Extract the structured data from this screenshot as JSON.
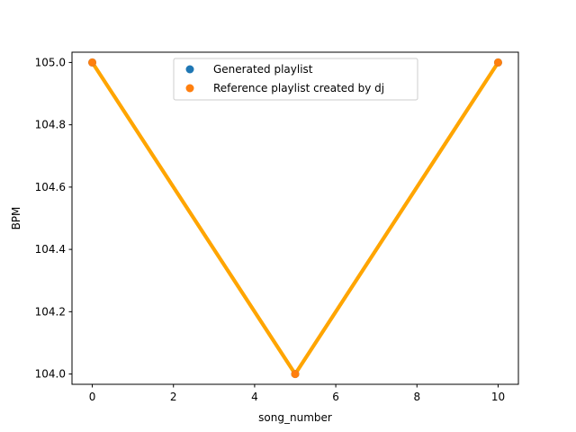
{
  "chart_data": {
    "type": "line",
    "xlabel": "song_number",
    "ylabel": "BPM",
    "xlim": [
      -0.5,
      10.5
    ],
    "ylim": [
      103.967,
      105.033
    ],
    "xticks": [
      0,
      2,
      4,
      6,
      8,
      10
    ],
    "xtick_labels": [
      "0",
      "2",
      "4",
      "6",
      "8",
      "10"
    ],
    "yticks": [
      104.0,
      104.2,
      104.4,
      104.6,
      104.8,
      105.0
    ],
    "ytick_labels": [
      "104.0",
      "104.2",
      "104.4",
      "104.6",
      "104.8",
      "105.0"
    ],
    "grid": false,
    "legend_position": "top-center",
    "series": [
      {
        "name": "Generated playlist",
        "marker_color": "#1f77b4",
        "line_color": "#ffa500",
        "x": [
          0,
          5,
          10
        ],
        "y": [
          105.0,
          104.0,
          105.0
        ]
      },
      {
        "name": "Reference playlist created by dj",
        "marker_color": "#ff7f0e",
        "line_color": "#ffa500",
        "x": [
          0,
          5,
          10
        ],
        "y": [
          105.0,
          104.0,
          105.0
        ]
      }
    ]
  }
}
